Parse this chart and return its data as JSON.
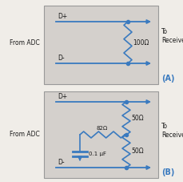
{
  "fig_bg": "#f0ede8",
  "box_bg": "#d4d0cc",
  "box_border": "#aaaaaa",
  "line_color": "#3a7abf",
  "text_color": "#1a1a1a",
  "label_color": "#3a7abf",
  "panel_A": {
    "dp_label": "D+",
    "dm_label": "D-",
    "resistor_label": "100Ω",
    "from_label": "From ADC",
    "to_label": "To\nReceiver",
    "tag": "(A)"
  },
  "panel_B": {
    "dp_label": "D+",
    "dm_label": "D-",
    "resistor_label1": "50Ω",
    "resistor_label2": "50Ω",
    "series_r_label": "82Ω",
    "cap_label": "0.1 μF",
    "from_label": "From ADC",
    "to_label": "To\nReceiver",
    "tag": "(B)"
  }
}
